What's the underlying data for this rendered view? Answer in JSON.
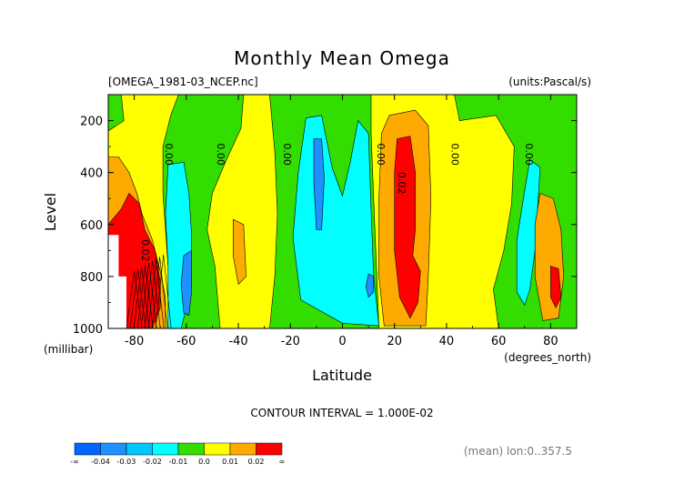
{
  "chart_data": {
    "type": "heatmap",
    "title": "Monthly Mean Omega",
    "file_label": "[OMEGA_1981-03_NCEP.nc]",
    "units_label": "(units:Pascal/s)",
    "xlabel": "Latitude",
    "x_units": "(degrees_north)",
    "ylabel": "Level",
    "y_units": "(millibar)",
    "xlim": [
      -90,
      90
    ],
    "ylim": [
      1000,
      100
    ],
    "x_ticks": [
      -80,
      -60,
      -40,
      -20,
      0,
      20,
      40,
      60,
      80
    ],
    "y_ticks": [
      200,
      400,
      600,
      800,
      1000
    ],
    "x_tick_labels": [
      "-80",
      "-60",
      "-40",
      "-20",
      "0",
      "20",
      "40",
      "60",
      "80"
    ],
    "y_tick_labels": [
      "200",
      "400",
      "600",
      "800",
      "1000"
    ],
    "contour_interval_label": "CONTOUR INTERVAL = 1.000E-02",
    "mean_label": "(mean) lon:0..357.5",
    "colorbar": {
      "bins": [
        {
          "color": "#0066ff"
        },
        {
          "color": "#1e90ff"
        },
        {
          "color": "#00c8ff"
        },
        {
          "color": "#00ffff"
        },
        {
          "color": "#33dd00"
        },
        {
          "color": "#ffff00"
        },
        {
          "color": "#ffaa00"
        },
        {
          "color": "#ff0000"
        }
      ],
      "labels": [
        "-∞",
        "-0.04",
        "-0.03",
        "-0.02",
        "-0.01",
        "0.0",
        "0.01",
        "0.02",
        "∞"
      ]
    },
    "contour_labels": [
      {
        "text": "0.00",
        "lat": -68,
        "lev": 330,
        "rot": 90
      },
      {
        "text": "0.00",
        "lat": -48,
        "lev": 330,
        "rot": 90
      },
      {
        "text": "0.00",
        "lat": -22.5,
        "lev": 330,
        "rot": 90
      },
      {
        "text": "0.00",
        "lat": 13.5,
        "lev": 330,
        "rot": 90
      },
      {
        "text": "0.02",
        "lat": 21.5,
        "lev": 440,
        "rot": 90
      },
      {
        "text": "0.00",
        "lat": 42,
        "lev": 330,
        "rot": 90
      },
      {
        "text": "0.00",
        "lat": 70.5,
        "lev": 330,
        "rot": 90
      },
      {
        "text": "0.02",
        "lat": -77,
        "lev": 700,
        "rot": 90
      }
    ],
    "regions": [
      {
        "value": 0.005,
        "color": "#ffff00",
        "pts": [
          [
            -90,
            100
          ],
          [
            90,
            100
          ],
          [
            90,
            1000
          ],
          [
            -90,
            1000
          ]
        ]
      },
      {
        "value": -0.005,
        "color": "#33dd00",
        "pts": [
          [
            -63,
            100
          ],
          [
            -38,
            100
          ],
          [
            -39,
            230
          ],
          [
            -45,
            360
          ],
          [
            -50,
            480
          ],
          [
            -52,
            620
          ],
          [
            -49,
            760
          ],
          [
            -47,
            1000
          ],
          [
            -64,
            1000
          ],
          [
            -67,
            760
          ],
          [
            -69,
            480
          ],
          [
            -69,
            300
          ],
          [
            -66,
            180
          ]
        ]
      },
      {
        "value": -0.005,
        "color": "#33dd00",
        "pts": [
          [
            -28,
            100
          ],
          [
            11,
            100
          ],
          [
            11,
            250
          ],
          [
            12,
            500
          ],
          [
            13,
            750
          ],
          [
            14,
            1000
          ],
          [
            -28,
            1000
          ],
          [
            -26,
            800
          ],
          [
            -25,
            560
          ],
          [
            -26,
            320
          ]
        ]
      },
      {
        "value": -0.005,
        "color": "#33dd00",
        "pts": [
          [
            43,
            100
          ],
          [
            90,
            100
          ],
          [
            90,
            1000
          ],
          [
            60,
            1000
          ],
          [
            58,
            850
          ],
          [
            62,
            700
          ],
          [
            65,
            520
          ],
          [
            66,
            300
          ],
          [
            59,
            180
          ],
          [
            45,
            200
          ]
        ]
      },
      {
        "value": -0.005,
        "color": "#33dd00",
        "pts": [
          [
            -90,
            100
          ],
          [
            -85,
            100
          ],
          [
            -84,
            200
          ],
          [
            -90,
            240
          ]
        ]
      },
      {
        "value": -0.015,
        "color": "#00ffff",
        "pts": [
          [
            -14,
            190
          ],
          [
            -8,
            180
          ],
          [
            -4,
            380
          ],
          [
            0,
            490
          ],
          [
            3,
            360
          ],
          [
            6,
            200
          ],
          [
            10,
            250
          ],
          [
            11,
            550
          ],
          [
            12,
            800
          ],
          [
            14,
            990
          ],
          [
            0,
            980
          ],
          [
            -16,
            890
          ],
          [
            -19,
            650
          ],
          [
            -17,
            400
          ]
        ]
      },
      {
        "value": -0.015,
        "color": "#00ffff",
        "pts": [
          [
            -67,
            370
          ],
          [
            -61,
            360
          ],
          [
            -59,
            480
          ],
          [
            -58,
            640
          ],
          [
            -58,
            840
          ],
          [
            -62,
            1000
          ],
          [
            -67,
            1000
          ],
          [
            -67,
            760
          ],
          [
            -68,
            560
          ]
        ]
      },
      {
        "value": -0.015,
        "color": "#00ffff",
        "pts": [
          [
            72,
            350
          ],
          [
            76,
            380
          ],
          [
            75,
            530
          ],
          [
            74,
            700
          ],
          [
            72,
            850
          ],
          [
            70,
            910
          ],
          [
            67,
            860
          ],
          [
            67,
            660
          ],
          [
            70,
            470
          ]
        ]
      },
      {
        "value": -0.025,
        "color": "#1e90ff",
        "pts": [
          [
            -11,
            270
          ],
          [
            -8,
            270
          ],
          [
            -7,
            420
          ],
          [
            -8,
            620
          ],
          [
            -10,
            620
          ],
          [
            -11,
            440
          ]
        ]
      },
      {
        "value": -0.025,
        "color": "#1e90ff",
        "pts": [
          [
            -61,
            720
          ],
          [
            -58,
            700
          ],
          [
            -58,
            860
          ],
          [
            -59,
            950
          ],
          [
            -61,
            940
          ],
          [
            -62,
            830
          ]
        ]
      },
      {
        "value": -0.025,
        "color": "#1e90ff",
        "pts": [
          [
            10,
            790
          ],
          [
            12,
            800
          ],
          [
            12,
            860
          ],
          [
            10,
            880
          ],
          [
            9,
            840
          ]
        ]
      },
      {
        "value": 0.015,
        "color": "#ffaa00",
        "pts": [
          [
            -90,
            340
          ],
          [
            -86,
            340
          ],
          [
            -82,
            400
          ],
          [
            -79,
            480
          ],
          [
            -77,
            560
          ],
          [
            -73,
            660
          ],
          [
            -70,
            780
          ],
          [
            -68,
            880
          ],
          [
            -68,
            1000
          ],
          [
            -90,
            1000
          ]
        ]
      },
      {
        "value": 0.015,
        "color": "#ffaa00",
        "pts": [
          [
            18,
            180
          ],
          [
            28,
            160
          ],
          [
            33,
            220
          ],
          [
            34,
            500
          ],
          [
            33,
            800
          ],
          [
            32,
            990
          ],
          [
            16,
            990
          ],
          [
            14,
            800
          ],
          [
            14,
            500
          ],
          [
            15,
            250
          ]
        ]
      },
      {
        "value": 0.015,
        "color": "#ffaa00",
        "pts": [
          [
            -42,
            580
          ],
          [
            -38,
            600
          ],
          [
            -37,
            800
          ],
          [
            -40,
            830
          ],
          [
            -42,
            720
          ]
        ]
      },
      {
        "value": 0.015,
        "color": "#ffaa00",
        "pts": [
          [
            76,
            480
          ],
          [
            81,
            500
          ],
          [
            84,
            620
          ],
          [
            85,
            800
          ],
          [
            83,
            960
          ],
          [
            77,
            970
          ],
          [
            74,
            800
          ],
          [
            74,
            600
          ]
        ]
      },
      {
        "value": 0.025,
        "color": "#ff0000",
        "pts": [
          [
            -90,
            600
          ],
          [
            -85,
            540
          ],
          [
            -82,
            480
          ],
          [
            -78,
            520
          ],
          [
            -76,
            620
          ],
          [
            -72,
            700
          ],
          [
            -70,
            820
          ],
          [
            -70,
            920
          ],
          [
            -73,
            1000
          ],
          [
            -90,
            1000
          ]
        ]
      },
      {
        "value": 0.025,
        "color": "#ff0000",
        "pts": [
          [
            21,
            270
          ],
          [
            26,
            260
          ],
          [
            28,
            400
          ],
          [
            28,
            620
          ],
          [
            27,
            720
          ],
          [
            30,
            780
          ],
          [
            29,
            900
          ],
          [
            26,
            960
          ],
          [
            22,
            880
          ],
          [
            20,
            700
          ],
          [
            20,
            400
          ]
        ]
      },
      {
        "value": 0.025,
        "color": "#ff0000",
        "pts": [
          [
            80,
            760
          ],
          [
            83,
            770
          ],
          [
            84,
            880
          ],
          [
            82,
            920
          ],
          [
            80,
            880
          ]
        ]
      }
    ],
    "masked": [
      {
        "pts": [
          [
            -90,
            640
          ],
          [
            -86,
            640
          ],
          [
            -86,
            800
          ],
          [
            -83,
            800
          ],
          [
            -83,
            1000
          ],
          [
            -90,
            1000
          ]
        ]
      }
    ]
  }
}
